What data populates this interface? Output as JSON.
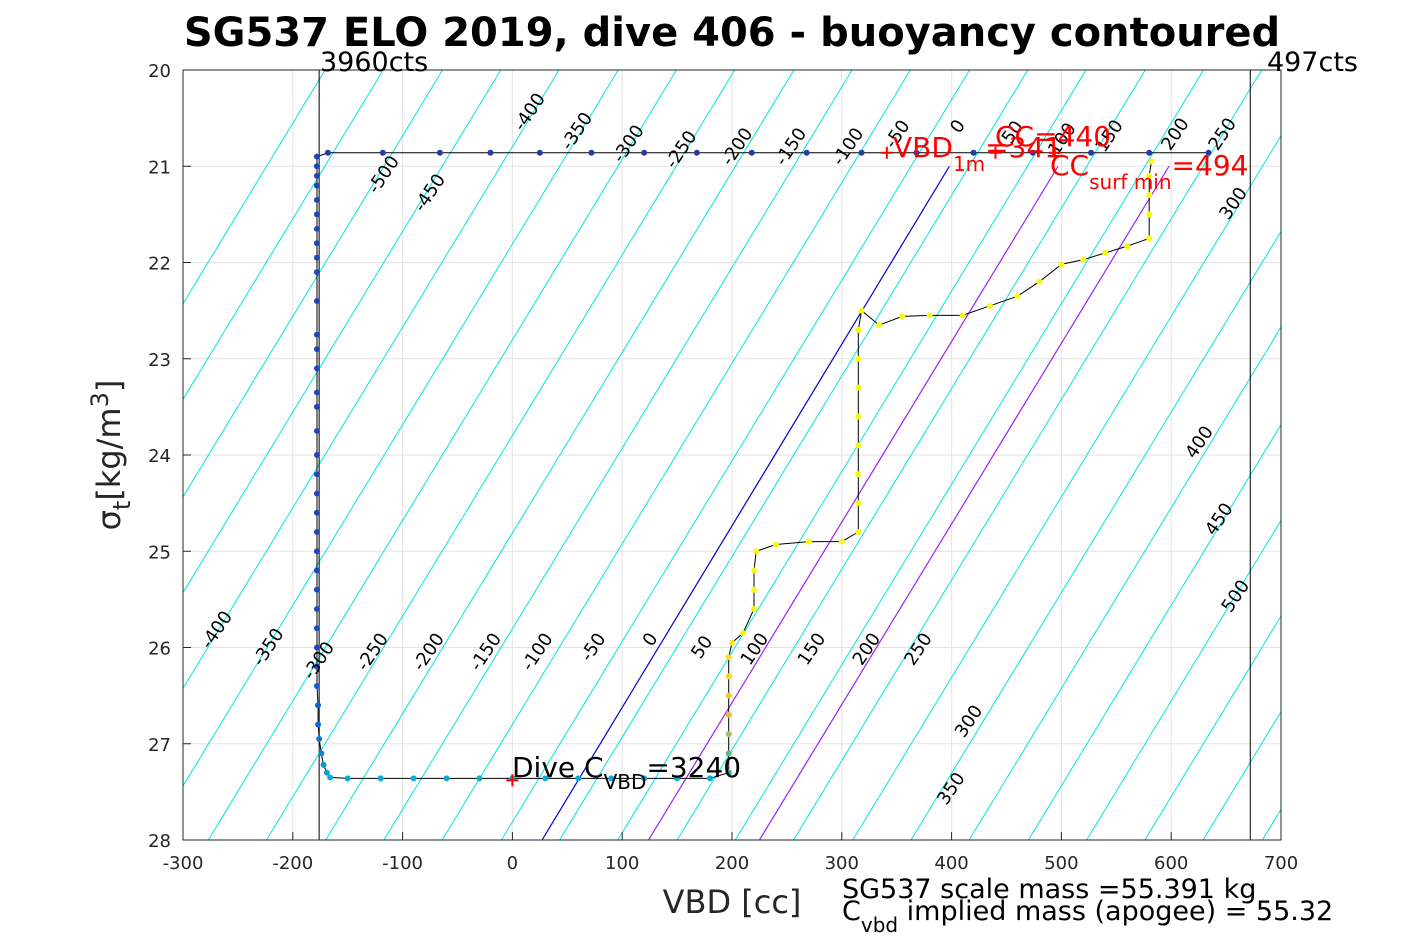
{
  "chart_data": {
    "type": "scatter",
    "title": "SG537 ELO 2019, dive 406 - buoyancy contoured",
    "xlabel": "VBD [cc]",
    "ylabel_main": "σ",
    "ylabel_sub": "t",
    "ylabel_units": "[kg/m",
    "ylabel_sup": "3",
    "ylabel_close": "]",
    "xlim": [
      -300,
      700
    ],
    "ylim": [
      20,
      28
    ],
    "y_reversed": true,
    "grid": true,
    "xticks": [
      -300,
      -200,
      -100,
      0,
      100,
      200,
      300,
      400,
      500,
      600,
      700
    ],
    "yticks": [
      20,
      21,
      22,
      23,
      24,
      25,
      26,
      27,
      28
    ],
    "vbd_limits": [
      {
        "x": -176,
        "label": "3960cts"
      },
      {
        "x": 672,
        "label": "497cts"
      }
    ],
    "reference_lines": [
      {
        "name": "neutral (0 g)",
        "color": "#0000cc",
        "points": [
          [
            27,
            28
          ],
          [
            398,
            21
          ]
        ]
      },
      {
        "name": "+200 / +250 line",
        "color": "#a020f0",
        "points": [
          [
            124,
            28
          ],
          [
            497,
            21
          ]
        ]
      },
      {
        "name": "+300 line",
        "color": "#a020f0",
        "points": [
          [
            225,
            28
          ],
          [
            598,
            21
          ]
        ]
      }
    ],
    "buoyancy_contours": {
      "color": "#00e5e5",
      "slope_cc_per_sigma": -53.3,
      "spacing_cc": 53.3,
      "intercepts_at_sigma28": [
        -597,
        -544,
        -490,
        -437,
        -384,
        -330,
        -277,
        -224,
        -170,
        -117,
        -64,
        -10,
        43,
        96,
        150,
        203,
        256,
        310,
        363,
        416,
        470,
        523,
        576,
        629,
        683,
        736,
        789,
        843,
        896,
        949,
        1003,
        1056,
        1109,
        1163,
        1216,
        1269,
        1322,
        1376
      ]
    },
    "contour_labels": [
      {
        "text": "-500",
        "x": -113,
        "y": 21.12
      },
      {
        "text": "-450",
        "x": -71,
        "y": 21.31
      },
      {
        "text": "-400",
        "x": 20,
        "y": 20.47
      },
      {
        "text": "-350",
        "x": 63,
        "y": 20.67
      },
      {
        "text": "-300",
        "x": 110,
        "y": 20.8
      },
      {
        "text": "-250",
        "x": 158,
        "y": 20.86
      },
      {
        "text": "-200",
        "x": 209,
        "y": 20.83
      },
      {
        "text": "-150",
        "x": 258,
        "y": 20.83
      },
      {
        "text": "-100",
        "x": 310,
        "y": 20.83
      },
      {
        "text": "-50",
        "x": 355,
        "y": 20.7
      },
      {
        "text": "0",
        "x": 410,
        "y": 20.62
      },
      {
        "text": "50",
        "x": 460,
        "y": 20.68
      },
      {
        "text": "100",
        "x": 505,
        "y": 20.75
      },
      {
        "text": "150",
        "x": 548,
        "y": 20.72
      },
      {
        "text": "200",
        "x": 608,
        "y": 20.7
      },
      {
        "text": "250",
        "x": 651,
        "y": 20.7
      },
      {
        "text": "300",
        "x": 661,
        "y": 21.42
      },
      {
        "text": "400",
        "x": 630,
        "y": 23.9
      },
      {
        "text": "450",
        "x": 648,
        "y": 24.7
      },
      {
        "text": "500",
        "x": 663,
        "y": 25.5
      },
      {
        "text": "-400",
        "x": -265,
        "y": 25.85
      },
      {
        "text": "-350",
        "x": -218,
        "y": 26.03
      },
      {
        "text": "-300",
        "x": -172,
        "y": 26.17
      },
      {
        "text": "-250",
        "x": -123,
        "y": 26.08
      },
      {
        "text": "-200",
        "x": -72,
        "y": 26.08
      },
      {
        "text": "-150",
        "x": -20,
        "y": 26.08
      },
      {
        "text": "-100",
        "x": 27,
        "y": 26.08
      },
      {
        "text": "-50",
        "x": 78,
        "y": 26.03
      },
      {
        "text": "0",
        "x": 130,
        "y": 25.95
      },
      {
        "text": "50",
        "x": 177,
        "y": 26.03
      },
      {
        "text": "100",
        "x": 225,
        "y": 26.05
      },
      {
        "text": "150",
        "x": 277,
        "y": 26.05
      },
      {
        "text": "200",
        "x": 327,
        "y": 26.05
      },
      {
        "text": "250",
        "x": 374,
        "y": 26.05
      },
      {
        "text": "300",
        "x": 420,
        "y": 26.8
      },
      {
        "text": "350",
        "x": 404,
        "y": 27.5
      }
    ],
    "series": [
      {
        "name": "dive profile (buoyancy-colored points)",
        "connect_color": "#000000",
        "colormap": "parula",
        "points": [
          [
            634,
            20.86,
            0.05
          ],
          [
            580,
            20.86,
            0.05
          ],
          [
            527,
            20.86,
            0.05
          ],
          [
            474,
            20.86,
            0.05
          ],
          [
            420,
            20.86,
            0.05
          ],
          [
            368,
            20.86,
            0.05
          ],
          [
            318,
            20.86,
            0.05
          ],
          [
            268,
            20.86,
            0.05
          ],
          [
            218,
            20.86,
            0.05
          ],
          [
            168,
            20.86,
            0.05
          ],
          [
            120,
            20.86,
            0.05
          ],
          [
            72,
            20.86,
            0.05
          ],
          [
            25,
            20.86,
            0.05
          ],
          [
            -20,
            20.86,
            0.05
          ],
          [
            -66,
            20.86,
            0.05
          ],
          [
            -118,
            20.86,
            0.05
          ],
          [
            -168,
            20.86,
            0.05
          ],
          [
            -178,
            20.9,
            0.08
          ],
          [
            -178,
            21.0,
            0.08
          ],
          [
            -178,
            21.1,
            0.08
          ],
          [
            -178,
            21.2,
            0.08
          ],
          [
            -178,
            21.35,
            0.08
          ],
          [
            -178,
            21.5,
            0.08
          ],
          [
            -178,
            21.65,
            0.08
          ],
          [
            -178,
            21.8,
            0.08
          ],
          [
            -178,
            21.95,
            0.08
          ],
          [
            -178,
            22.1,
            0.08
          ],
          [
            -178,
            22.4,
            0.08
          ],
          [
            -178,
            22.75,
            0.08
          ],
          [
            -178,
            22.9,
            0.08
          ],
          [
            -178,
            23.1,
            0.08
          ],
          [
            -178,
            23.35,
            0.08
          ],
          [
            -178,
            23.5,
            0.08
          ],
          [
            -178,
            23.75,
            0.08
          ],
          [
            -178,
            24.0,
            0.08
          ],
          [
            -178,
            24.2,
            0.08
          ],
          [
            -178,
            24.4,
            0.08
          ],
          [
            -178,
            24.6,
            0.08
          ],
          [
            -178,
            24.8,
            0.08
          ],
          [
            -178,
            25.0,
            0.09
          ],
          [
            -178,
            25.2,
            0.09
          ],
          [
            -178,
            25.4,
            0.09
          ],
          [
            -178,
            25.6,
            0.09
          ],
          [
            -178,
            25.8,
            0.1
          ],
          [
            -178,
            26.0,
            0.1
          ],
          [
            -178,
            26.2,
            0.12
          ],
          [
            -178,
            26.4,
            0.14
          ],
          [
            -177,
            26.6,
            0.16
          ],
          [
            -177,
            26.8,
            0.2
          ],
          [
            -176,
            26.95,
            0.25
          ],
          [
            -174,
            27.1,
            0.32
          ],
          [
            -172,
            27.22,
            0.38
          ],
          [
            -169,
            27.3,
            0.42
          ],
          [
            -166,
            27.35,
            0.45
          ],
          [
            -150,
            27.36,
            0.45
          ],
          [
            -120,
            27.36,
            0.45
          ],
          [
            -90,
            27.36,
            0.45
          ],
          [
            -60,
            27.36,
            0.45
          ],
          [
            -30,
            27.36,
            0.45
          ],
          [
            0,
            27.36,
            0.45
          ],
          [
            30,
            27.36,
            0.45
          ],
          [
            60,
            27.36,
            0.45
          ],
          [
            90,
            27.36,
            0.45
          ],
          [
            120,
            27.36,
            0.45
          ],
          [
            150,
            27.36,
            0.45
          ],
          [
            180,
            27.36,
            0.45
          ],
          [
            197,
            27.3,
            0.55
          ],
          [
            197,
            27.1,
            0.65
          ],
          [
            197,
            26.9,
            0.75
          ],
          [
            197,
            26.7,
            0.85
          ],
          [
            197,
            26.5,
            0.9
          ],
          [
            197,
            26.3,
            0.93
          ],
          [
            197,
            26.1,
            0.95
          ],
          [
            200,
            25.95,
            0.97
          ],
          [
            210,
            25.85,
            0.98
          ],
          [
            220,
            25.6,
            0.99
          ],
          [
            220,
            25.4,
            1.0
          ],
          [
            220,
            25.2,
            1.0
          ],
          [
            222,
            25.0,
            1.0
          ],
          [
            240,
            24.93,
            1.0
          ],
          [
            270,
            24.9,
            1.0
          ],
          [
            300,
            24.9,
            1.0
          ],
          [
            315,
            24.8,
            1.0
          ],
          [
            315,
            24.5,
            1.0
          ],
          [
            315,
            24.2,
            1.0
          ],
          [
            315,
            23.9,
            1.0
          ],
          [
            315,
            23.6,
            1.0
          ],
          [
            315,
            23.3,
            1.0
          ],
          [
            315,
            23.0,
            1.0
          ],
          [
            315,
            22.7,
            1.0
          ],
          [
            318,
            22.5,
            1.0
          ],
          [
            334,
            22.65,
            1.0
          ],
          [
            355,
            22.56,
            1.0
          ],
          [
            380,
            22.55,
            1.0
          ],
          [
            410,
            22.55,
            1.0
          ],
          [
            435,
            22.45,
            1.0
          ],
          [
            460,
            22.35,
            1.0
          ],
          [
            480,
            22.2,
            1.0
          ],
          [
            500,
            22.02,
            1.0
          ],
          [
            520,
            21.97,
            1.0
          ],
          [
            540,
            21.9,
            1.0
          ],
          [
            560,
            21.83,
            1.0
          ],
          [
            580,
            21.75,
            1.0
          ],
          [
            580,
            21.5,
            1.0
          ],
          [
            580,
            21.3,
            1.0
          ],
          [
            580,
            21.1,
            1.0
          ],
          [
            582,
            20.95,
            1.0
          ]
        ]
      }
    ],
    "markers": [
      {
        "name": "Dive C_VBD",
        "x": 0,
        "y": 27.38,
        "color": "#ff0000"
      },
      {
        "name": "VBD_1m",
        "x": 341,
        "y": 20.86,
        "color": "#ff0000"
      },
      {
        "name": "CC",
        "x": 440,
        "y": 20.86,
        "color": "#ff0000"
      },
      {
        "name": "CC_surf_min",
        "x": 494,
        "y": 20.86,
        "color": "#ff0000"
      }
    ]
  },
  "annotations": {
    "dive_cvbd": {
      "prefix": "Dive C",
      "sub": "VBD",
      "suffix": "=3240"
    },
    "vbd_1m": {
      "prefix": "VBD",
      "sub": "1m",
      "suffix": "=341"
    },
    "cc": {
      "text": "CC=440"
    },
    "cc_surf_min": {
      "prefix": "CC",
      "sub": "surf min",
      "suffix": "=494"
    }
  },
  "footer": {
    "scale_mass": "SG537 scale mass =55.391 kg",
    "implied_prefix": "C",
    "implied_sub": "vbd",
    "implied_suffix": " implied mass (apogee) = 55.32"
  }
}
